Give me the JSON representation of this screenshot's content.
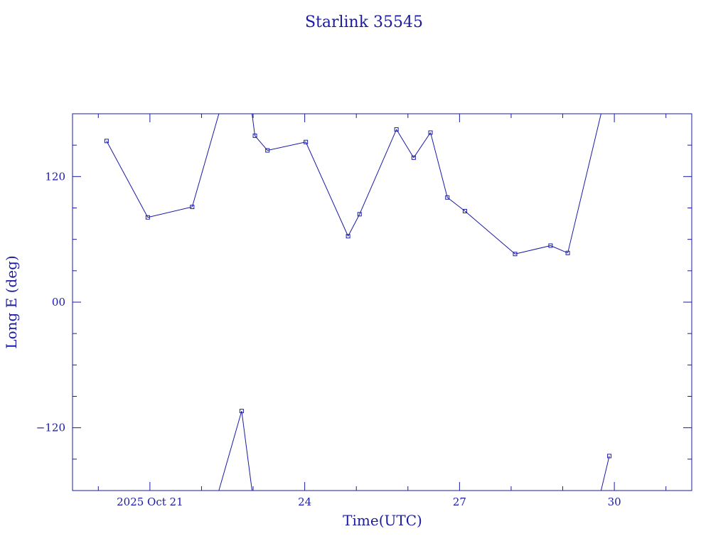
{
  "colors": {
    "ink": "#1a1aa6",
    "background": "#ffffff"
  },
  "chart_data": {
    "type": "line",
    "title": "Starlink 35545",
    "xlabel": "Time(UTC)",
    "ylabel": "Long E (deg)",
    "x_unit": "days",
    "xlim": [
      "2025-10-19 12:00",
      "2025-10-31 12:00"
    ],
    "ylim": [
      -180,
      180
    ],
    "x_tick_labels": [
      {
        "at": "2025-10-21",
        "label": "2025 Oct 21"
      },
      {
        "at": "2025-10-24",
        "label": "24"
      },
      {
        "at": "2025-10-27",
        "label": "27"
      },
      {
        "at": "2025-10-30",
        "label": "30"
      }
    ],
    "y_tick_labels": [
      {
        "at": 120,
        "label": "120"
      },
      {
        "at": 0,
        "label": "00"
      },
      {
        "at": -120,
        "label": "−120"
      }
    ],
    "wrap_longitude": true,
    "grid": false,
    "legend": "none",
    "markers": "small-square",
    "points": [
      [
        "2025-10-20 03:50",
        154
      ],
      [
        "2025-10-20 23:00",
        81
      ],
      [
        "2025-10-21 19:40",
        91
      ],
      [
        "2025-10-22 18:40",
        -104
      ],
      [
        "2025-10-23 00:50",
        159
      ],
      [
        "2025-10-23 06:40",
        145
      ],
      [
        "2025-10-24 00:30",
        153
      ],
      [
        "2025-10-24 20:10",
        63
      ],
      [
        "2025-10-25 01:30",
        84
      ],
      [
        "2025-10-25 18:40",
        165
      ],
      [
        "2025-10-26 02:40",
        138
      ],
      [
        "2025-10-26 10:30",
        162
      ],
      [
        "2025-10-26 18:20",
        100
      ],
      [
        "2025-10-27 02:30",
        87
      ],
      [
        "2025-10-28 01:50",
        46
      ],
      [
        "2025-10-28 18:20",
        54
      ],
      [
        "2025-10-29 02:20",
        47
      ],
      [
        "2025-10-29 21:40",
        -147
      ]
    ]
  }
}
